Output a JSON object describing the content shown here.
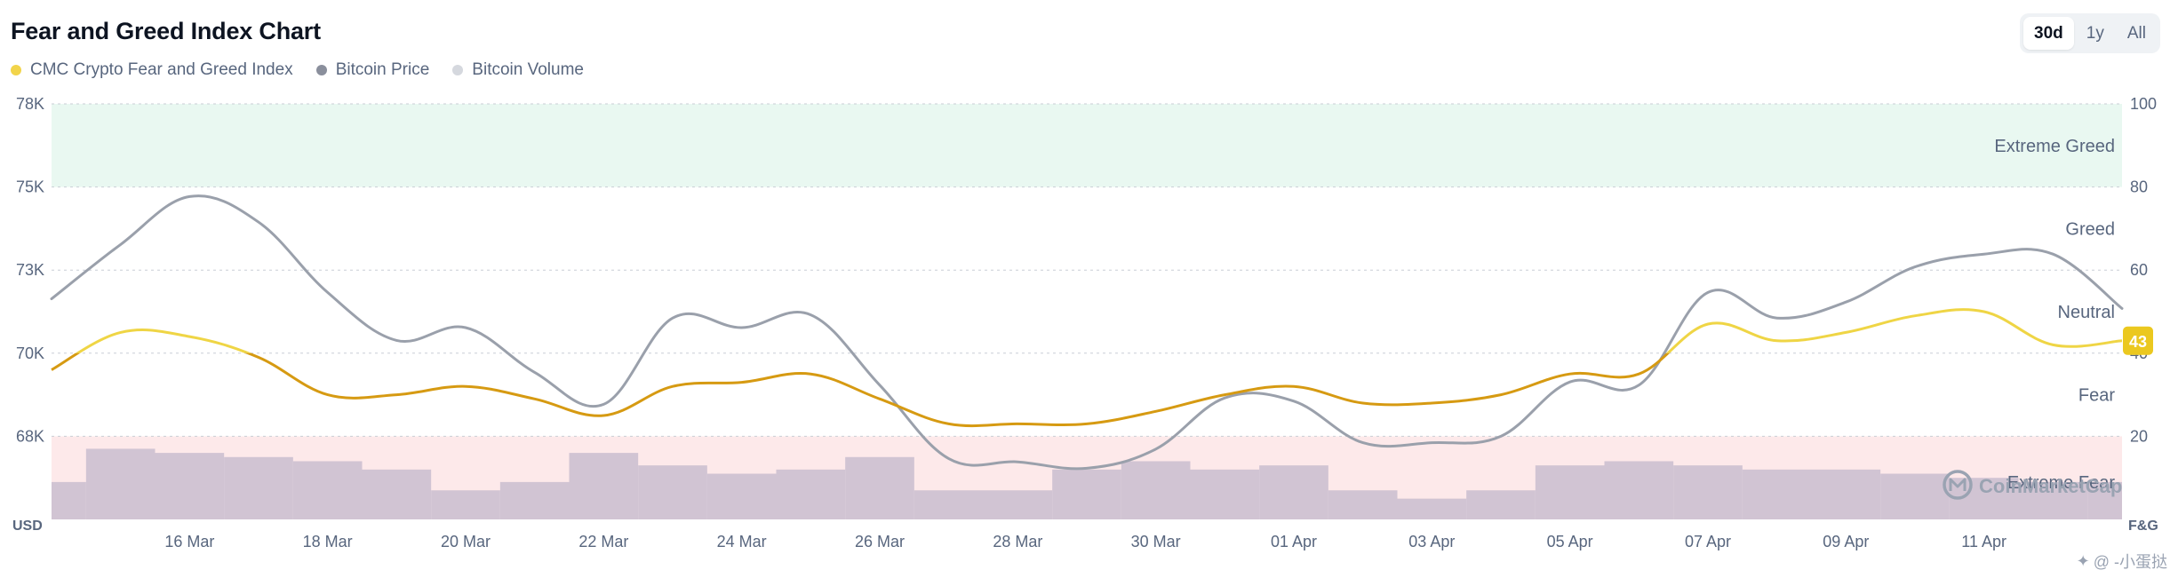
{
  "title": "Fear and Greed Index Chart",
  "legend": [
    {
      "label": "CMC Crypto Fear and Greed Index",
      "color": "#f2d44a"
    },
    {
      "label": "Bitcoin Price",
      "color": "#8a8f9c"
    },
    {
      "label": "Bitcoin Volume",
      "color": "#d5d8de"
    }
  ],
  "range_toggle": {
    "options": [
      "30d",
      "1y",
      "All"
    ],
    "selected": "30d"
  },
  "watermark": "CoinMarketCap",
  "credit": "@ -小蛋挞",
  "chart_data": {
    "type": "line",
    "x_ticks": [
      "16 Mar",
      "18 Mar",
      "20 Mar",
      "22 Mar",
      "24 Mar",
      "26 Mar",
      "28 Mar",
      "30 Mar",
      "01 Apr",
      "03 Apr",
      "05 Apr",
      "07 Apr",
      "09 Apr",
      "11 Apr"
    ],
    "left_axis": {
      "unit_label": "USD",
      "ticks": [
        "78K",
        "75K",
        "73K",
        "70K",
        "68K"
      ]
    },
    "right_axis": {
      "unit_label": "F&G",
      "ticks": [
        100,
        80,
        60,
        40,
        20
      ],
      "range": [
        0,
        100
      ]
    },
    "zones": [
      {
        "label": "Extreme Greed",
        "range": [
          80,
          100
        ],
        "color": "#e9f8f1"
      },
      {
        "label": "Greed",
        "range": [
          60,
          80
        ]
      },
      {
        "label": "Neutral",
        "range": [
          40,
          60
        ]
      },
      {
        "label": "Fear",
        "range": [
          20,
          40
        ]
      },
      {
        "label": "Extreme Fear",
        "range": [
          0,
          20
        ],
        "color": "#fde9ea"
      }
    ],
    "current_value": "43",
    "series": [
      {
        "name": "CMC Crypto Fear and Greed Index",
        "color": "#f0c419",
        "dates": [
          "14 Mar",
          "15 Mar",
          "16 Mar",
          "17 Mar",
          "18 Mar",
          "19 Mar",
          "20 Mar",
          "21 Mar",
          "22 Mar",
          "23 Mar",
          "24 Mar",
          "25 Mar",
          "26 Mar",
          "27 Mar",
          "28 Mar",
          "29 Mar",
          "30 Mar",
          "31 Mar",
          "01 Apr",
          "02 Apr",
          "03 Apr",
          "04 Apr",
          "05 Apr",
          "06 Apr",
          "07 Apr",
          "08 Apr",
          "09 Apr",
          "10 Apr",
          "11 Apr",
          "12 Apr",
          "13 Apr"
        ],
        "values": [
          36,
          45,
          44,
          39,
          30,
          30,
          32,
          29,
          25,
          32,
          33,
          35,
          29,
          23,
          23,
          23,
          26,
          30,
          32,
          28,
          28,
          30,
          35,
          35,
          47,
          43,
          45,
          49,
          50,
          42,
          43
        ]
      },
      {
        "name": "Bitcoin Price",
        "color": "#9aa0ab",
        "dates": [
          "14 Mar",
          "15 Mar",
          "16 Mar",
          "17 Mar",
          "18 Mar",
          "19 Mar",
          "20 Mar",
          "21 Mar",
          "22 Mar",
          "23 Mar",
          "24 Mar",
          "25 Mar",
          "26 Mar",
          "27 Mar",
          "28 Mar",
          "29 Mar",
          "30 Mar",
          "31 Mar",
          "01 Apr",
          "02 Apr",
          "03 Apr",
          "04 Apr",
          "05 Apr",
          "06 Apr",
          "07 Apr",
          "08 Apr",
          "09 Apr",
          "10 Apr",
          "11 Apr",
          "12 Apr",
          "13 Apr"
        ],
        "values": [
          71900,
          73600,
          75100,
          74300,
          72100,
          70600,
          71000,
          69600,
          68600,
          71300,
          71000,
          71400,
          69200,
          66900,
          66800,
          66600,
          67200,
          68800,
          68700,
          67400,
          67400,
          67600,
          69300,
          69200,
          72100,
          71300,
          71800,
          72900,
          73300,
          73300,
          71600
        ]
      },
      {
        "name": "Bitcoin Volume",
        "color": "#c9bdcf",
        "dates": [
          "14 Mar",
          "15 Mar",
          "16 Mar",
          "17 Mar",
          "18 Mar",
          "19 Mar",
          "20 Mar",
          "21 Mar",
          "22 Mar",
          "23 Mar",
          "24 Mar",
          "25 Mar",
          "26 Mar",
          "27 Mar",
          "28 Mar",
          "29 Mar",
          "30 Mar",
          "31 Mar",
          "01 Apr",
          "02 Apr",
          "03 Apr",
          "04 Apr",
          "05 Apr",
          "06 Apr",
          "07 Apr",
          "08 Apr",
          "09 Apr",
          "10 Apr",
          "11 Apr",
          "12 Apr",
          "13 Apr"
        ],
        "values": [
          9,
          17,
          16,
          15,
          14,
          12,
          7,
          9,
          16,
          13,
          11,
          12,
          15,
          7,
          7,
          12,
          14,
          12,
          13,
          7,
          5,
          7,
          13,
          14,
          13,
          12,
          12,
          11,
          10,
          9,
          9
        ]
      }
    ]
  }
}
